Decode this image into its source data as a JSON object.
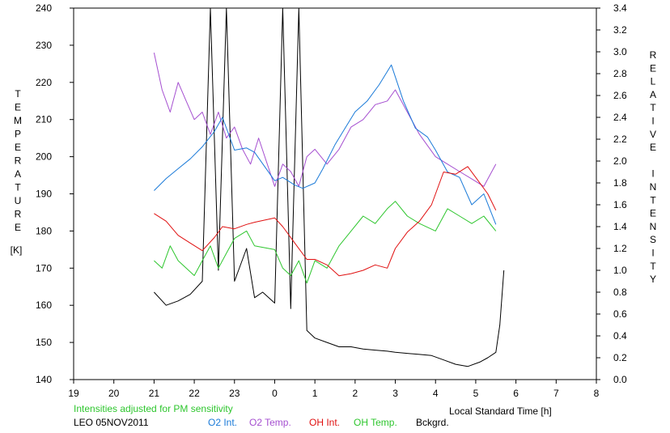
{
  "chart_data": {
    "type": "line",
    "title": "",
    "xlabel": "Local Standard Time [h]",
    "ylabel_left": "TEMPERATURE [K]",
    "ylabel_right": "RELATIVE INTENSITY",
    "xlim": [
      19,
      32
    ],
    "ylim_left": [
      140,
      240
    ],
    "ylim_right": [
      0,
      3.4
    ],
    "x_ticks": [
      19,
      20,
      21,
      22,
      23,
      24,
      25,
      26,
      27,
      28,
      29,
      30,
      31,
      32
    ],
    "x_tick_labels": [
      "19",
      "20",
      "21",
      "22",
      "23",
      "0",
      "1",
      "2",
      "3",
      "4",
      "5",
      "6",
      "7",
      "8"
    ],
    "y_left_ticks": [
      140,
      150,
      160,
      170,
      180,
      190,
      200,
      210,
      220,
      230,
      240
    ],
    "y_right_ticks": [
      0.0,
      0.2,
      0.4,
      0.6,
      0.8,
      1.0,
      1.2,
      1.4,
      1.6,
      1.8,
      2.0,
      2.2,
      2.4,
      2.6,
      2.8,
      3.0,
      3.2,
      3.4
    ],
    "y_right_tick_labels": [
      "0.0",
      "0.2",
      "0.4",
      "0.6",
      "0.8",
      "1.0",
      "1.2",
      "1.4",
      "1.6",
      "1.8",
      "2.0",
      "2.2",
      "2.4",
      "2.6",
      "2.8",
      "3.0",
      "3.2",
      "3.4"
    ],
    "grid": false,
    "legend_position": "bottom",
    "colors": {
      "o2_int": "#1a7ad8",
      "o2_temp": "#a54fd0",
      "oh_int": "#e01010",
      "oh_temp": "#2ec62e",
      "bckgrd": "#000000",
      "note": "#2ec62e"
    },
    "series": [
      {
        "name": "O2 Int.",
        "axis": "right",
        "color_key": "o2_int",
        "x": [
          21.0,
          21.3,
          21.6,
          21.9,
          22.2,
          22.5,
          22.7,
          23.0,
          23.3,
          23.5,
          24.0,
          24.2,
          24.5,
          24.7,
          25.0,
          25.2,
          25.5,
          25.8,
          26.0,
          26.3,
          26.6,
          26.9,
          27.2,
          27.5,
          27.8,
          28.0,
          28.3,
          28.6,
          28.9,
          29.2,
          29.5
        ],
        "y": [
          1.73,
          1.84,
          1.93,
          2.02,
          2.13,
          2.27,
          2.4,
          2.1,
          2.12,
          2.08,
          1.82,
          1.85,
          1.78,
          1.75,
          1.8,
          1.93,
          2.15,
          2.33,
          2.45,
          2.55,
          2.7,
          2.88,
          2.55,
          2.3,
          2.22,
          2.1,
          1.9,
          1.85,
          1.6,
          1.7,
          1.42
        ]
      },
      {
        "name": "O2 Temp.",
        "axis": "left",
        "color_key": "o2_temp",
        "x": [
          21.0,
          21.2,
          21.4,
          21.6,
          21.8,
          22.0,
          22.2,
          22.4,
          22.6,
          22.8,
          23.0,
          23.2,
          23.4,
          23.6,
          24.0,
          24.2,
          24.4,
          24.6,
          24.8,
          25.0,
          25.3,
          25.6,
          25.9,
          26.2,
          26.5,
          26.8,
          27.0,
          27.3,
          27.6,
          28.0,
          28.3,
          28.6,
          28.9,
          29.2,
          29.5
        ],
        "y": [
          228,
          218,
          212,
          220,
          215,
          210,
          212,
          206,
          212,
          205,
          208,
          202,
          198,
          205,
          192,
          198,
          196,
          192,
          200,
          202,
          198,
          202,
          208,
          210,
          214,
          215,
          218,
          212,
          206,
          200,
          198,
          196,
          194,
          192,
          198
        ]
      },
      {
        "name": "OH Int.",
        "axis": "right",
        "color_key": "oh_int",
        "x": [
          21.0,
          21.3,
          21.6,
          21.9,
          22.2,
          22.5,
          22.7,
          23.0,
          23.3,
          23.5,
          24.0,
          24.2,
          24.5,
          24.8,
          25.0,
          25.3,
          25.6,
          25.9,
          26.2,
          26.5,
          26.8,
          27.0,
          27.3,
          27.6,
          27.9,
          28.2,
          28.5,
          28.8,
          29.0,
          29.3,
          29.5
        ],
        "y": [
          1.52,
          1.45,
          1.32,
          1.25,
          1.18,
          1.3,
          1.4,
          1.38,
          1.42,
          1.44,
          1.48,
          1.4,
          1.25,
          1.1,
          1.1,
          1.05,
          0.95,
          0.97,
          1.0,
          1.05,
          1.02,
          1.2,
          1.35,
          1.45,
          1.6,
          1.9,
          1.88,
          1.95,
          1.85,
          1.7,
          1.55
        ]
      },
      {
        "name": "OH Temp.",
        "axis": "left",
        "color_key": "oh_temp",
        "x": [
          21.0,
          21.2,
          21.4,
          21.6,
          21.8,
          22.0,
          22.2,
          22.4,
          22.6,
          22.8,
          23.0,
          23.3,
          23.5,
          24.0,
          24.2,
          24.4,
          24.6,
          24.8,
          25.0,
          25.3,
          25.6,
          25.9,
          26.2,
          26.5,
          26.8,
          27.0,
          27.3,
          27.6,
          28.0,
          28.3,
          28.6,
          28.9,
          29.2,
          29.5
        ],
        "y": [
          172,
          170,
          176,
          172,
          170,
          168,
          172,
          176,
          170,
          174,
          178,
          180,
          176,
          175,
          170,
          168,
          172,
          166,
          172,
          170,
          176,
          180,
          184,
          182,
          186,
          188,
          184,
          182,
          180,
          186,
          184,
          182,
          184,
          180
        ]
      },
      {
        "name": "Bckgrd.",
        "axis": "right",
        "color_key": "bckgrd",
        "x": [
          21.0,
          21.3,
          21.6,
          21.9,
          22.2,
          22.4,
          22.6,
          22.8,
          23.0,
          23.3,
          23.5,
          23.7,
          24.0,
          24.2,
          24.4,
          24.6,
          24.8,
          25.0,
          25.3,
          25.6,
          25.9,
          26.2,
          26.5,
          26.8,
          27.0,
          27.3,
          27.6,
          27.9,
          28.2,
          28.5,
          28.8,
          29.1,
          29.3,
          29.5,
          29.6,
          29.7
        ],
        "y": [
          0.8,
          0.68,
          0.72,
          0.78,
          0.9,
          3.4,
          1.0,
          3.4,
          0.9,
          1.2,
          0.75,
          0.8,
          0.7,
          3.4,
          0.65,
          3.4,
          0.45,
          0.38,
          0.34,
          0.3,
          0.3,
          0.28,
          0.27,
          0.26,
          0.25,
          0.24,
          0.23,
          0.22,
          0.18,
          0.14,
          0.12,
          0.16,
          0.2,
          0.25,
          0.5,
          1.0
        ]
      }
    ],
    "annotations": {
      "note": "Intensities adjusted for PM sensitivity",
      "station": "LEO 05NOV2011"
    },
    "legend": [
      {
        "label": "O2 Int.",
        "color_key": "o2_int"
      },
      {
        "label": "O2 Temp.",
        "color_key": "o2_temp"
      },
      {
        "label": "OH Int.",
        "color_key": "oh_int"
      },
      {
        "label": "OH Temp.",
        "color_key": "oh_temp"
      },
      {
        "label": "Bckgrd.",
        "color_key": "bckgrd"
      }
    ]
  }
}
